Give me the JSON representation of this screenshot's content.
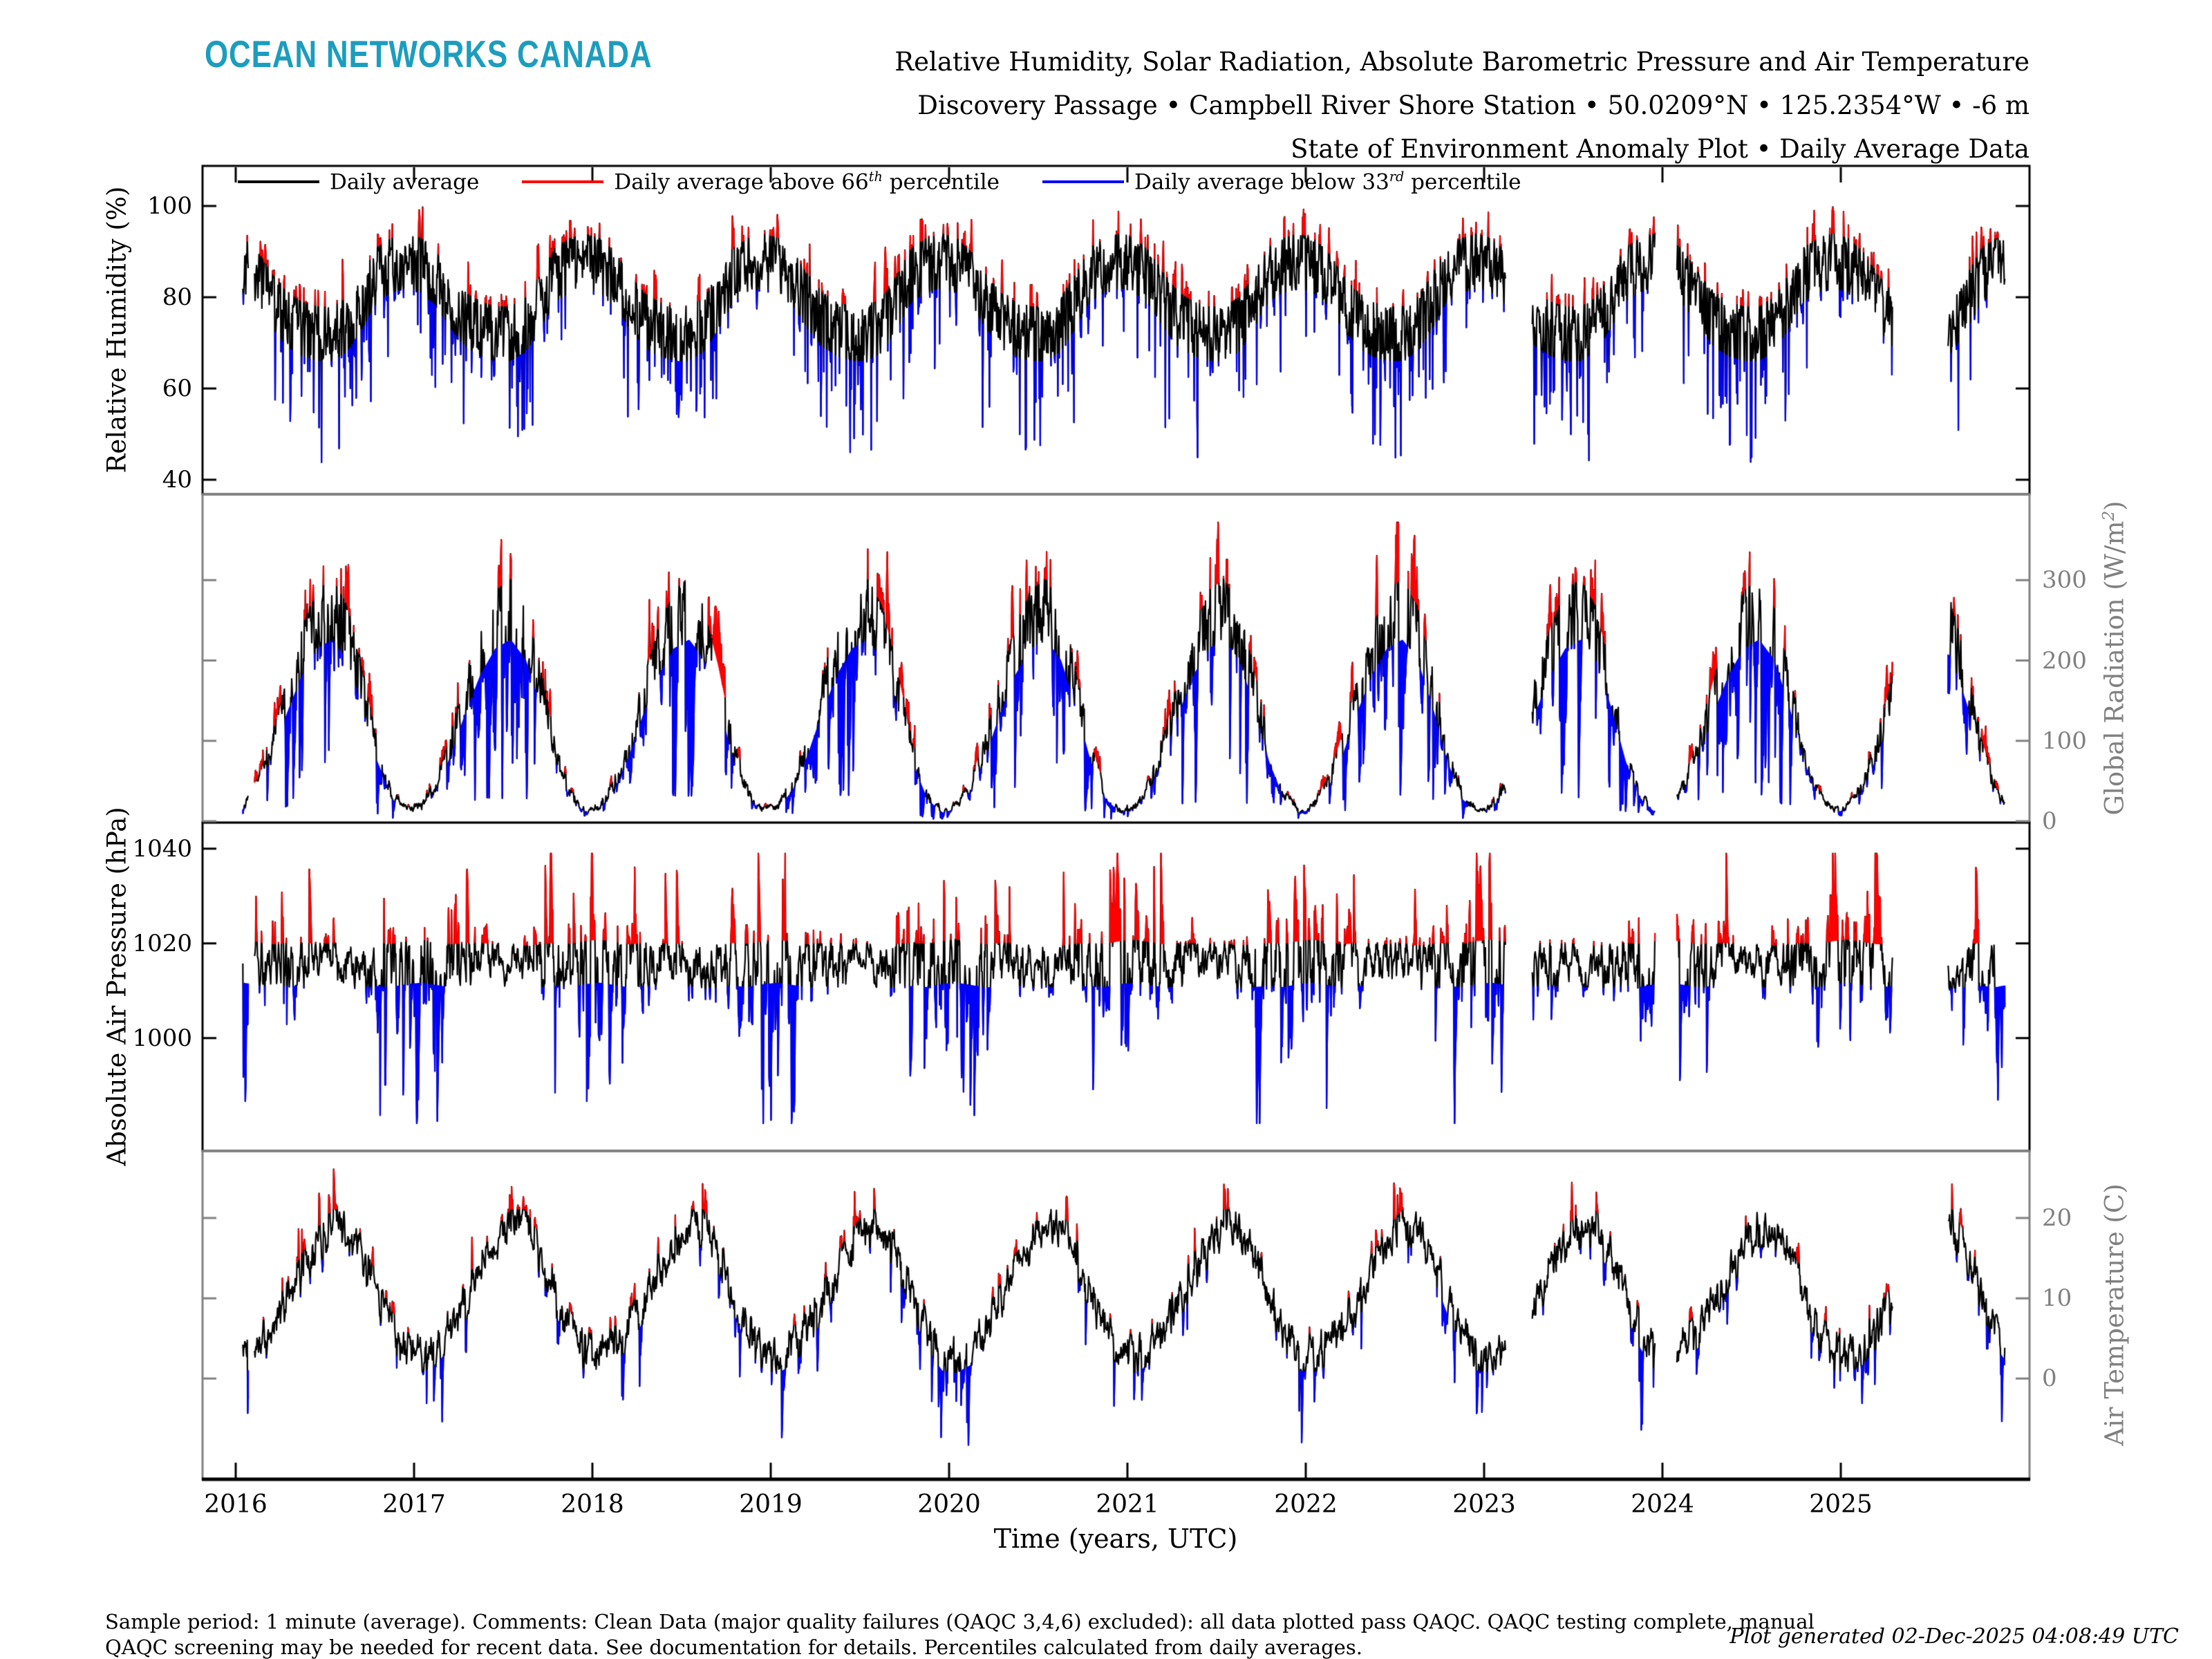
{
  "logo": {
    "text": "OCEAN NETWORKS CANADA",
    "color": "#1C9DBE"
  },
  "title": {
    "line1": "Relative Humidity, Solar Radiation, Absolute Barometric Pressure and Air Temperature",
    "line2": "Discovery Passage • Campbell River Shore Station • 50.0209°N • 125.2354°W • -6 m",
    "line3": "State of Environment Anomaly Plot • Daily Average Data"
  },
  "legend": {
    "items": [
      {
        "prefix": "Daily average",
        "sup": "",
        "suffix": "",
        "color": "#000000"
      },
      {
        "prefix": "Daily average above 66",
        "sup": "th",
        "suffix": " percentile",
        "color": "#ff0000"
      },
      {
        "prefix": "Daily average below 33",
        "sup": "rd",
        "suffix": " percentile",
        "color": "#0000ff"
      }
    ]
  },
  "colors": {
    "daily": "#000000",
    "above": "#ff0000",
    "below": "#0000ff",
    "gray_axis": "#808080"
  },
  "seed": 20251202,
  "time": {
    "xlabel": "Time (years, UTC)",
    "xlim": [
      2015.814,
      2026.058
    ],
    "xticks": [
      "2016",
      "2017",
      "2018",
      "2019",
      "2020",
      "2021",
      "2022",
      "2023",
      "2024",
      "2025"
    ],
    "start": 2016.04,
    "end": 2025.92,
    "samples_per_year": 365,
    "gaps": [
      [
        2016.072,
        2016.105
      ],
      [
        2023.12,
        2023.27
      ],
      [
        2023.96,
        2024.08
      ],
      [
        2025.29,
        2025.6
      ]
    ]
  },
  "chart_data": [
    {
      "type": "line",
      "name": "relative-humidity",
      "ylabel": {
        "pre": "Relative Humidity (%)",
        "sup": "",
        "post": ""
      },
      "axis_side": "left",
      "axis_color": "#000000",
      "ylim": [
        36.8,
        108.8
      ],
      "yticks": [
        {
          "v": 100,
          "label": "100"
        },
        {
          "v": 80,
          "label": "80"
        },
        {
          "v": 60,
          "label": "60"
        },
        {
          "v": 40,
          "label": "40"
        }
      ],
      "observed_range": [
        40,
        100
      ],
      "seasonal_monthly_mean": [
        88,
        85,
        80,
        76,
        74,
        73,
        73,
        75,
        80,
        86,
        88,
        89
      ],
      "model": {
        "mode": "ar",
        "sigma": 5.5,
        "persistence": 0.5,
        "dip_prob": 0.09,
        "dip_scale": 21,
        "dip_season": "summer",
        "band_up": 5,
        "band_dn": 7,
        "clamp": [
          38.5,
          99.8
        ]
      }
    },
    {
      "type": "line",
      "name": "global-radiation",
      "ylabel": {
        "pre": "Global Radiation (W/m",
        "sup": "2",
        "post": ")"
      },
      "axis_side": "right",
      "axis_color": "#808080",
      "ylim": [
        -1.7,
        407
      ],
      "yticks": [
        {
          "v": 300,
          "label": "300"
        },
        {
          "v": 200,
          "label": "200"
        },
        {
          "v": 100,
          "label": "100"
        },
        {
          "v": 0,
          "label": "0"
        }
      ],
      "observed_range": [
        0,
        370
      ],
      "seasonal_monthly_mean": [
        22,
        55,
        115,
        190,
        255,
        300,
        315,
        280,
        200,
        105,
        40,
        16
      ],
      "model": {
        "mode": "solar",
        "cloud_persistence": 0.8,
        "deep_cloud_prob": 0.04,
        "band_up_rel": 0.95,
        "band_up_abs": 3,
        "band_dn_rel": 0.72,
        "band_dn_abs": -1,
        "clamp": [
          2,
          372
        ]
      }
    },
    {
      "type": "line",
      "name": "absolute-air-pressure",
      "ylabel": {
        "pre": "Absolute Air Pressure (hPa)",
        "sup": "",
        "post": ""
      },
      "axis_side": "left",
      "axis_color": "#000000",
      "ylim": [
        976.2,
        1045.5
      ],
      "yticks": [
        {
          "v": 1040,
          "label": "1040"
        },
        {
          "v": 1020,
          "label": "1020"
        },
        {
          "v": 1000,
          "label": "1000"
        }
      ],
      "observed_range": [
        985,
        1039
      ],
      "seasonal_monthly_mean": [
        1016.5,
        1016,
        1015.5,
        1015.8,
        1015.8,
        1015.6,
        1015.8,
        1015.2,
        1015.6,
        1015.8,
        1015.6,
        1016.2
      ],
      "model": {
        "mode": "ar",
        "sigma": 3.1,
        "persistence": 0.72,
        "winter_boost": 1.5,
        "storm_prob": 0.05,
        "storm_scale": 22,
        "high_prob": 0.03,
        "high_scale": 17,
        "band_up": 4.3,
        "band_dn": 4.8,
        "clamp": [
          982,
          1039
        ]
      }
    },
    {
      "type": "line",
      "name": "air-temperature",
      "ylabel": {
        "pre": "Air Temperature (C)",
        "sup": "",
        "post": ""
      },
      "axis_side": "right",
      "axis_color": "#808080",
      "ylim": [
        -12.55,
        28.36
      ],
      "yticks": [
        {
          "v": 20,
          "label": "20"
        },
        {
          "v": 10,
          "label": "10"
        },
        {
          "v": 0,
          "label": "0"
        }
      ],
      "observed_range": [
        -11,
        25
      ],
      "seasonal_monthly_mean": [
        3.2,
        4.2,
        6.5,
        9.8,
        13.5,
        16.5,
        18.8,
        18.8,
        15.5,
        10.5,
        6.2,
        3.5
      ],
      "model": {
        "mode": "ar",
        "sigma": 1.75,
        "persistence": 0.68,
        "cold_prob": 0.05,
        "cold_scale": 7,
        "warm_prob": 0.04,
        "warm_scale": 4.5,
        "band_up": 2.3,
        "band_dn": 2.5,
        "clamp": [
          -12.4,
          27
        ]
      }
    }
  ],
  "footer": {
    "line1": "Sample period: 1 minute (average). Comments: Clean Data (major quality failures (QAQC 3,4,6) excluded): all data plotted pass QAQC. QAQC testing complete, manual",
    "line2": "QAQC screening may be needed for recent data. See documentation for details. Percentiles calculated from daily averages.",
    "credit": "Plot generated 02-Dec-2025 04:08:49 UTC"
  }
}
